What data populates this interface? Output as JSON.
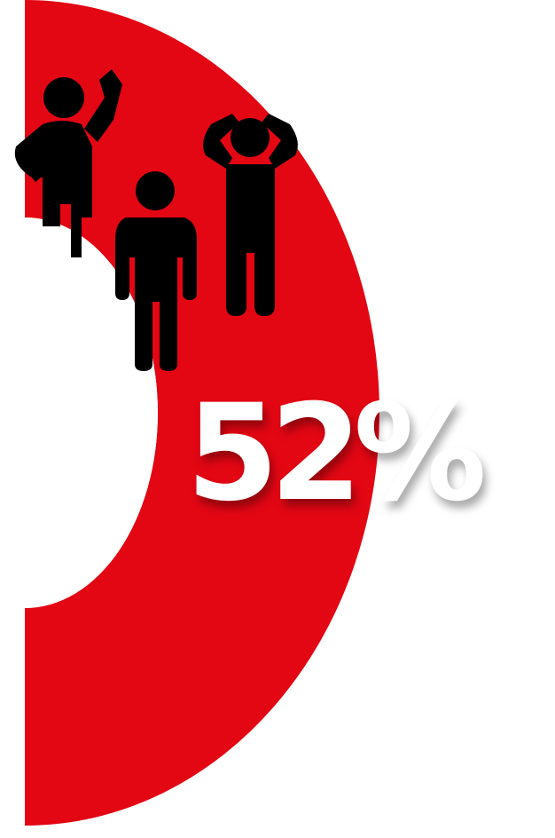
{
  "graphic": {
    "value_label": "52%",
    "value_fraction": 0.52,
    "figures": [
      {
        "pose": "person-hand-on-head-icon"
      },
      {
        "pose": "person-standing-icon"
      },
      {
        "pose": "person-hands-on-head-icon"
      }
    ]
  },
  "colors": {
    "accent": "#e30613",
    "figure": "#000000",
    "label": "#ffffff",
    "background": "#ffffff"
  }
}
